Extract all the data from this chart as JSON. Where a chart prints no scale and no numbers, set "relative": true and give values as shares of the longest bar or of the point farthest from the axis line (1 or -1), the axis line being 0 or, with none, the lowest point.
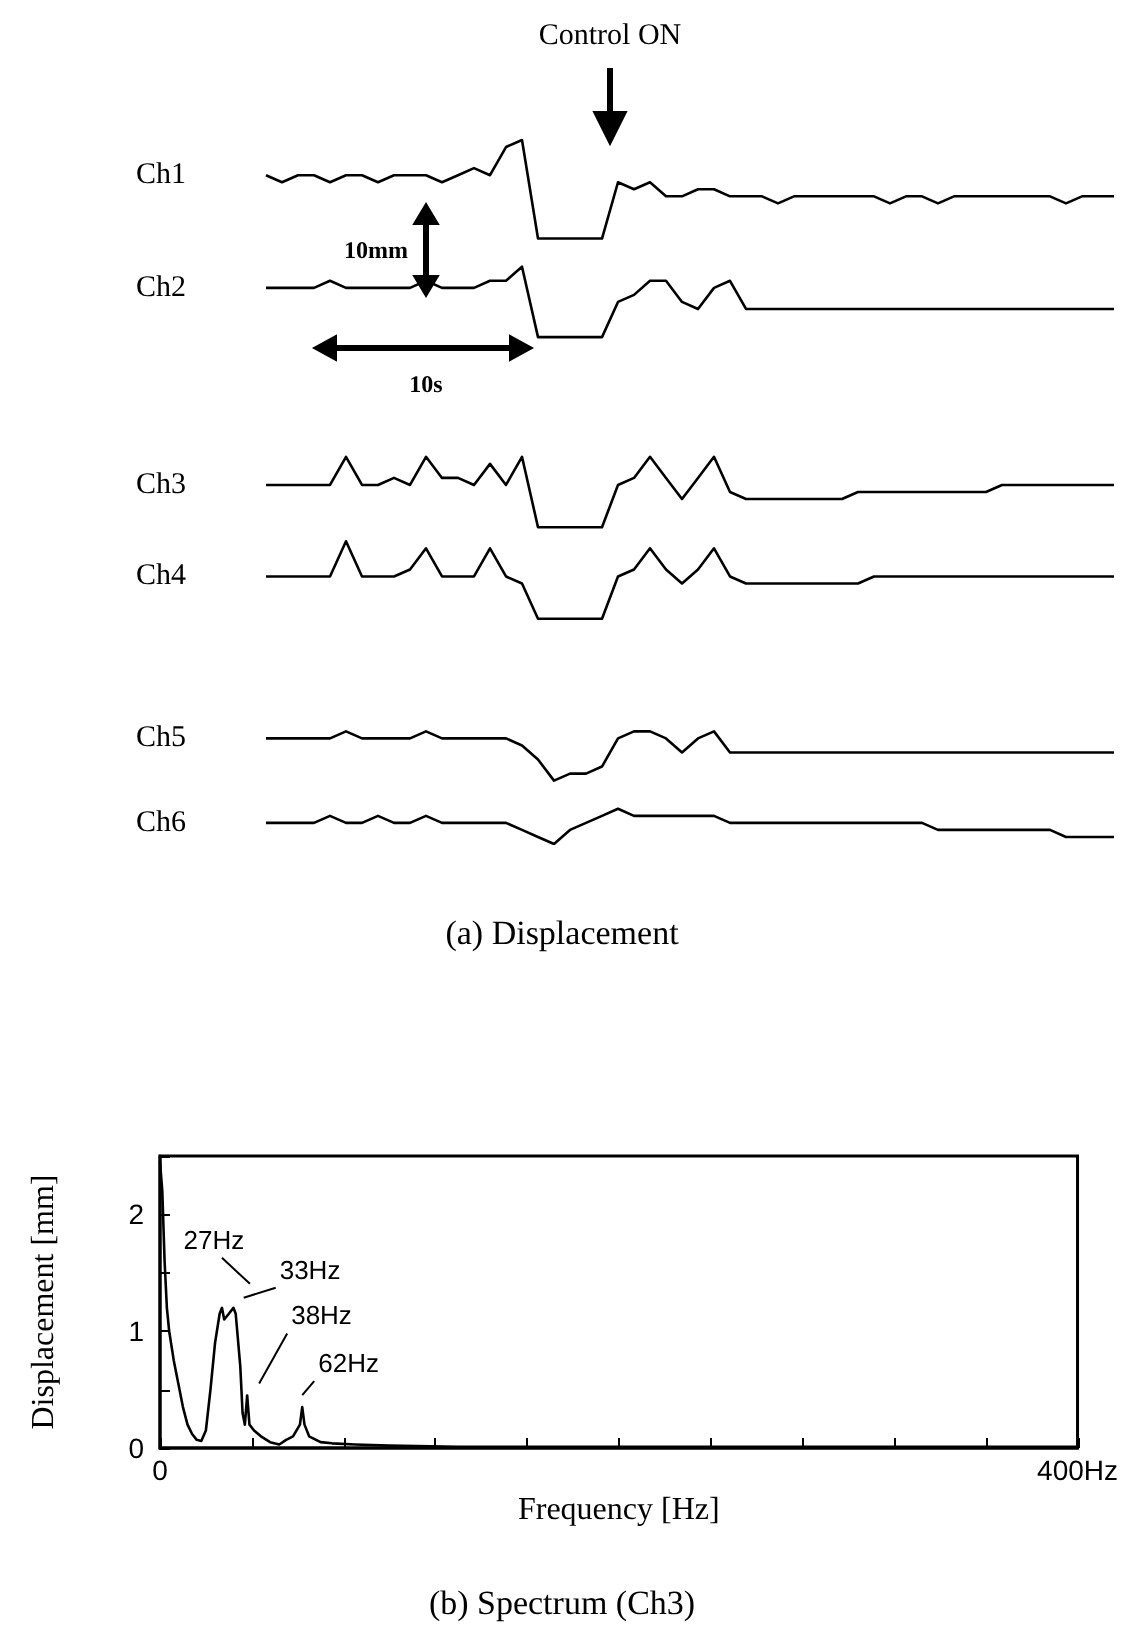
{
  "chart_data": [
    {
      "type": "line",
      "title": "(a) Displacement",
      "relative": true,
      "tick_labels": false,
      "annotations": [
        "Control ON",
        "10mm",
        "10s"
      ],
      "categories": [
        null,
        null,
        null,
        null,
        null,
        null,
        null,
        null,
        null,
        null,
        null,
        null,
        null,
        null,
        null,
        null,
        null,
        null,
        null,
        null,
        null,
        null,
        null,
        null,
        null,
        null,
        null,
        null,
        null,
        null,
        null,
        null,
        null,
        null,
        null,
        null,
        null,
        null,
        null,
        null,
        null,
        null,
        null,
        null,
        null,
        null,
        null,
        null,
        null,
        null,
        null,
        null,
        null,
        null
      ],
      "series": [
        {
          "name": "Ch1",
          "color": "#000000",
          "values": [
            0.95,
            0.94,
            0.95,
            0.95,
            0.94,
            0.95,
            0.95,
            0.94,
            0.95,
            0.95,
            0.95,
            0.94,
            0.95,
            0.96,
            0.95,
            0.99,
            1.0,
            0.86,
            0.86,
            0.86,
            0.86,
            0.86,
            0.94,
            0.93,
            0.94,
            0.92,
            0.92,
            0.93,
            0.93,
            0.92,
            0.92,
            0.92,
            0.91,
            0.92,
            0.92,
            0.92,
            0.92,
            0.92,
            0.92,
            0.91,
            0.92,
            0.92,
            0.91,
            0.92,
            0.92,
            0.92,
            0.92,
            0.92,
            0.92,
            0.92,
            0.91,
            0.92,
            0.92,
            0.92
          ]
        },
        {
          "name": "Ch2",
          "color": "#000000",
          "values": [
            0.79,
            0.79,
            0.79,
            0.79,
            0.8,
            0.79,
            0.79,
            0.79,
            0.79,
            0.79,
            0.8,
            0.79,
            0.79,
            0.79,
            0.8,
            0.8,
            0.82,
            0.72,
            0.72,
            0.72,
            0.72,
            0.72,
            0.77,
            0.78,
            0.8,
            0.8,
            0.77,
            0.76,
            0.79,
            0.8,
            0.76,
            0.76,
            0.76,
            0.76,
            0.76,
            0.76,
            0.76,
            0.76,
            0.76,
            0.76,
            0.76,
            0.76,
            0.76,
            0.76,
            0.76,
            0.76,
            0.76,
            0.76,
            0.76,
            0.76,
            0.76,
            0.76,
            0.76,
            0.76
          ]
        },
        {
          "name": "Ch3",
          "color": "#000000",
          "values": [
            0.51,
            0.51,
            0.51,
            0.51,
            0.51,
            0.55,
            0.51,
            0.51,
            0.52,
            0.51,
            0.55,
            0.52,
            0.52,
            0.51,
            0.54,
            0.51,
            0.55,
            0.45,
            0.45,
            0.45,
            0.45,
            0.45,
            0.51,
            0.52,
            0.55,
            0.52,
            0.49,
            0.52,
            0.55,
            0.5,
            0.49,
            0.49,
            0.49,
            0.49,
            0.49,
            0.49,
            0.49,
            0.5,
            0.5,
            0.5,
            0.5,
            0.5,
            0.5,
            0.5,
            0.5,
            0.5,
            0.51,
            0.51,
            0.51,
            0.51,
            0.51,
            0.51,
            0.51,
            0.51
          ]
        },
        {
          "name": "Ch4",
          "color": "#000000",
          "values": [
            0.38,
            0.38,
            0.38,
            0.38,
            0.38,
            0.43,
            0.38,
            0.38,
            0.38,
            0.39,
            0.42,
            0.38,
            0.38,
            0.38,
            0.42,
            0.38,
            0.37,
            0.32,
            0.32,
            0.32,
            0.32,
            0.32,
            0.38,
            0.39,
            0.42,
            0.39,
            0.37,
            0.39,
            0.42,
            0.38,
            0.37,
            0.37,
            0.37,
            0.37,
            0.37,
            0.37,
            0.37,
            0.37,
            0.38,
            0.38,
            0.38,
            0.38,
            0.38,
            0.38,
            0.38,
            0.38,
            0.38,
            0.38,
            0.38,
            0.38,
            0.38,
            0.38,
            0.38,
            0.38
          ]
        },
        {
          "name": "Ch5",
          "color": "#000000",
          "values": [
            0.15,
            0.15,
            0.15,
            0.15,
            0.15,
            0.16,
            0.15,
            0.15,
            0.15,
            0.15,
            0.16,
            0.15,
            0.15,
            0.15,
            0.15,
            0.15,
            0.14,
            0.12,
            0.09,
            0.1,
            0.1,
            0.11,
            0.15,
            0.16,
            0.16,
            0.15,
            0.13,
            0.15,
            0.16,
            0.13,
            0.13,
            0.13,
            0.13,
            0.13,
            0.13,
            0.13,
            0.13,
            0.13,
            0.13,
            0.13,
            0.13,
            0.13,
            0.13,
            0.13,
            0.13,
            0.13,
            0.13,
            0.13,
            0.13,
            0.13,
            0.13,
            0.13,
            0.13,
            0.13
          ]
        },
        {
          "name": "Ch6",
          "color": "#000000",
          "values": [
            0.03,
            0.03,
            0.03,
            0.03,
            0.04,
            0.03,
            0.03,
            0.04,
            0.03,
            0.03,
            0.04,
            0.03,
            0.03,
            0.03,
            0.03,
            0.03,
            0.02,
            0.01,
            0.0,
            0.02,
            0.03,
            0.04,
            0.05,
            0.04,
            0.04,
            0.04,
            0.04,
            0.04,
            0.04,
            0.03,
            0.03,
            0.03,
            0.03,
            0.03,
            0.03,
            0.03,
            0.03,
            0.03,
            0.03,
            0.03,
            0.03,
            0.03,
            0.02,
            0.02,
            0.02,
            0.02,
            0.02,
            0.02,
            0.02,
            0.02,
            0.01,
            0.01,
            0.01,
            0.01
          ]
        }
      ]
    },
    {
      "type": "line",
      "title": "(b) Spectrum (Ch3)",
      "xlabel": "Frequency [Hz]",
      "ylabel": "Displacement [mm]",
      "xlim": [
        0,
        400
      ],
      "xticks": [
        0,
        {
          "value": 40,
          "label": null
        },
        {
          "value": 80,
          "label": null
        },
        {
          "value": 120,
          "label": null
        },
        {
          "value": 160,
          "label": null
        },
        {
          "value": 200,
          "label": null
        },
        {
          "value": 240,
          "label": null
        },
        {
          "value": 280,
          "label": null
        },
        {
          "value": 320,
          "label": null
        },
        {
          "value": 360,
          "label": null
        },
        {
          "value": 400,
          "label": "400Hz"
        }
      ],
      "ylim": [
        0,
        2.5
      ],
      "yticks": [
        0,
        {
          "value": 0.5,
          "label": null
        },
        1,
        {
          "value": 1.5,
          "label": null
        },
        2,
        {
          "value": 2.5,
          "label": null
        }
      ],
      "annotations": [
        {
          "text": "27Hz",
          "x": 27,
          "y": 1.2
        },
        {
          "text": "33Hz",
          "x": 33,
          "y": 1.15
        },
        {
          "text": "38Hz",
          "x": 38,
          "y": 0.45
        },
        {
          "text": "62Hz",
          "x": 62,
          "y": 0.35
        }
      ],
      "series": [
        {
          "color": "#000000",
          "x": [
            0,
            1,
            2,
            3,
            4,
            6,
            8,
            10,
            12,
            14,
            16,
            18,
            20,
            22,
            24,
            26,
            27,
            28,
            30,
            32,
            33,
            35,
            36,
            37,
            38,
            39,
            41,
            44,
            48,
            52,
            55,
            58,
            61,
            62,
            63,
            65,
            70,
            75,
            85,
            100,
            130,
            200,
            300,
            400
          ],
          "values": [
            2.45,
            2.2,
            1.6,
            1.2,
            1.0,
            0.75,
            0.55,
            0.35,
            0.2,
            0.12,
            0.07,
            0.06,
            0.15,
            0.5,
            0.9,
            1.15,
            1.2,
            1.1,
            1.15,
            1.2,
            1.15,
            0.7,
            0.3,
            0.2,
            0.45,
            0.2,
            0.15,
            0.1,
            0.05,
            0.03,
            0.07,
            0.1,
            0.2,
            0.35,
            0.2,
            0.1,
            0.05,
            0.04,
            0.03,
            0.02,
            0.01,
            0.01,
            0.01,
            0.01
          ]
        }
      ]
    }
  ]
}
